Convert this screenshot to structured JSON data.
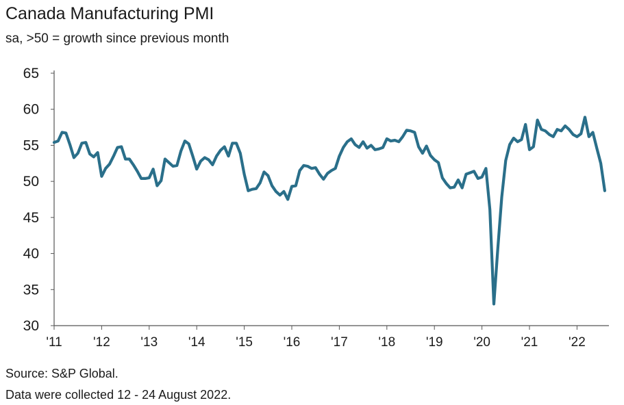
{
  "chart_data": {
    "type": "line",
    "title": "Canada Manufacturing PMI",
    "subtitle": "sa, >50 = growth since previous month",
    "xlabel": "",
    "ylabel": "",
    "ylim": [
      30,
      65
    ],
    "yticks": [
      "65",
      "60",
      "55",
      "50",
      "45",
      "40",
      "35",
      "30"
    ],
    "ytick_values": [
      65,
      60,
      55,
      50,
      45,
      40,
      35,
      30
    ],
    "xticks": [
      "'11",
      "'12",
      "'13",
      "'14",
      "'15",
      "'16",
      "'17",
      "'18",
      "'19",
      "'20",
      "'21",
      "'22"
    ],
    "x_start": "2011-01",
    "x_end": "2022-08",
    "series": [
      {
        "name": "Canada Manufacturing PMI",
        "color": "#2a6f8a",
        "values": [
          55.4,
          55.6,
          56.8,
          56.7,
          55.1,
          53.3,
          53.9,
          55.3,
          55.4,
          53.8,
          53.4,
          54.0,
          50.7,
          51.8,
          52.4,
          53.5,
          54.7,
          54.8,
          53.1,
          53.1,
          52.3,
          51.4,
          50.4,
          50.4,
          50.5,
          51.7,
          49.4,
          50.1,
          53.1,
          52.6,
          52.1,
          52.2,
          54.2,
          55.6,
          55.2,
          53.5,
          51.7,
          52.8,
          53.3,
          53.0,
          52.3,
          53.5,
          54.3,
          54.8,
          53.5,
          55.3,
          55.3,
          53.9,
          51.0,
          48.7,
          48.9,
          49.0,
          49.8,
          51.3,
          50.8,
          49.4,
          48.6,
          48.1,
          48.6,
          47.5,
          49.3,
          49.4,
          51.5,
          52.2,
          52.1,
          51.8,
          51.9,
          51.0,
          50.3,
          51.1,
          51.5,
          51.8,
          53.5,
          54.7,
          55.5,
          55.9,
          55.1,
          54.7,
          55.5,
          54.6,
          55.0,
          54.4,
          54.5,
          54.7,
          55.9,
          55.6,
          55.7,
          55.5,
          56.2,
          57.1,
          57.0,
          56.8,
          54.8,
          53.9,
          54.9,
          53.6,
          53.0,
          52.6,
          50.5,
          49.7,
          49.1,
          49.2,
          50.2,
          49.1,
          51.0,
          51.2,
          51.4,
          50.4,
          50.6,
          51.8,
          46.1,
          33.0,
          40.6,
          47.8,
          52.9,
          55.1,
          56.0,
          55.5,
          55.8,
          57.9,
          54.4,
          54.8,
          58.5,
          57.2,
          57.0,
          56.5,
          56.2,
          57.2,
          57.0,
          57.7,
          57.2,
          56.5,
          56.2,
          56.6,
          58.9,
          56.2,
          56.8,
          54.6,
          52.5,
          48.7
        ]
      }
    ]
  },
  "footer": {
    "source": "Source: S&P Global.",
    "note": "Data were collected 12 - 24 August 2022."
  }
}
